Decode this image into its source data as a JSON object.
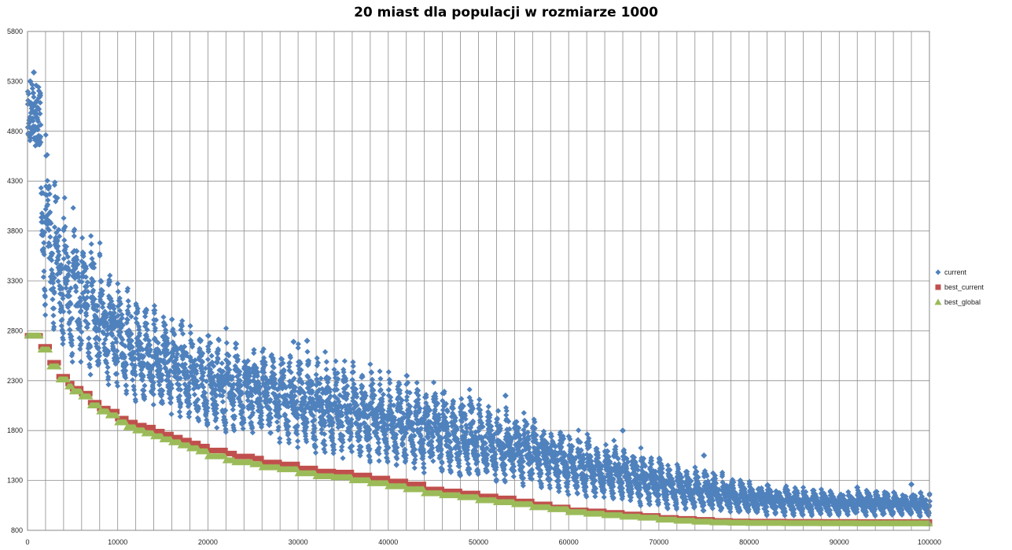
{
  "chart_data": {
    "type": "scatter",
    "title": "20 miast dla populacji w  rozmiarze 1000",
    "xlabel": "",
    "ylabel": "",
    "xlim": [
      0,
      100000
    ],
    "ylim": [
      800,
      5800
    ],
    "xticks": [
      0,
      10000,
      20000,
      30000,
      40000,
      50000,
      60000,
      70000,
      80000,
      90000,
      100000
    ],
    "yticks": [
      800,
      1300,
      1800,
      2300,
      2800,
      3300,
      3800,
      4300,
      4800,
      5300,
      5800
    ],
    "grid": true,
    "legend": "right",
    "x_gridlines_every": 2000,
    "series": [
      {
        "name": "current",
        "color": "#4F81BD",
        "marker": "diamond",
        "upper_envelope": [
          [
            0,
            5250
          ],
          [
            2000,
            4880
          ],
          [
            3000,
            4550
          ],
          [
            4000,
            4300
          ],
          [
            5000,
            4100
          ],
          [
            6000,
            4020
          ],
          [
            8000,
            3700
          ],
          [
            10000,
            3450
          ],
          [
            12000,
            3250
          ],
          [
            14000,
            3120
          ],
          [
            16000,
            3050
          ],
          [
            18000,
            2980
          ],
          [
            20000,
            2900
          ],
          [
            24000,
            2800
          ],
          [
            28000,
            2750
          ],
          [
            32000,
            2660
          ],
          [
            36000,
            2580
          ],
          [
            40000,
            2450
          ],
          [
            44000,
            2380
          ],
          [
            48000,
            2280
          ],
          [
            52000,
            2120
          ],
          [
            56000,
            2020
          ],
          [
            60000,
            1880
          ],
          [
            64000,
            1750
          ],
          [
            68000,
            1650
          ],
          [
            72000,
            1480
          ],
          [
            76000,
            1420
          ],
          [
            80000,
            1320
          ],
          [
            84000,
            1270
          ],
          [
            88000,
            1230
          ],
          [
            92000,
            1220
          ],
          [
            96000,
            1220
          ],
          [
            100000,
            1200
          ]
        ],
        "lower_envelope": [
          [
            0,
            4600
          ],
          [
            2000,
            2850
          ],
          [
            4000,
            2500
          ],
          [
            6000,
            2350
          ],
          [
            8000,
            2250
          ],
          [
            10000,
            2150
          ],
          [
            12000,
            2050
          ],
          [
            16000,
            1900
          ],
          [
            20000,
            1780
          ],
          [
            24000,
            1700
          ],
          [
            28000,
            1650
          ],
          [
            32000,
            1520
          ],
          [
            36000,
            1460
          ],
          [
            40000,
            1400
          ],
          [
            44000,
            1330
          ],
          [
            48000,
            1290
          ],
          [
            52000,
            1240
          ],
          [
            56000,
            1200
          ],
          [
            60000,
            1120
          ],
          [
            64000,
            1080
          ],
          [
            68000,
            1030
          ],
          [
            72000,
            990
          ],
          [
            76000,
            960
          ],
          [
            80000,
            940
          ],
          [
            84000,
            935
          ],
          [
            88000,
            935
          ],
          [
            92000,
            935
          ],
          [
            96000,
            930
          ],
          [
            100000,
            930
          ]
        ],
        "outliers": [
          [
            700,
            5390
          ],
          [
            300,
            5300
          ],
          [
            53000,
            2150
          ],
          [
            31000,
            2700
          ],
          [
            29500,
            2690
          ],
          [
            66000,
            1800
          ],
          [
            75000,
            1550
          ],
          [
            92000,
            1230
          ],
          [
            98000,
            1260
          ]
        ]
      },
      {
        "name": "best_current",
        "color": "#C0504D",
        "marker": "square",
        "values": [
          [
            0,
            2750
          ],
          [
            1000,
            2750
          ],
          [
            1500,
            2640
          ],
          [
            2000,
            2640
          ],
          [
            2500,
            2480
          ],
          [
            3000,
            2480
          ],
          [
            3500,
            2340
          ],
          [
            4000,
            2340
          ],
          [
            4500,
            2270
          ],
          [
            5000,
            2220
          ],
          [
            6000,
            2170
          ],
          [
            7000,
            2080
          ],
          [
            8000,
            2020
          ],
          [
            9000,
            1990
          ],
          [
            10000,
            1920
          ],
          [
            11000,
            1880
          ],
          [
            12000,
            1850
          ],
          [
            13000,
            1830
          ],
          [
            14000,
            1790
          ],
          [
            15000,
            1760
          ],
          [
            16000,
            1730
          ],
          [
            17000,
            1700
          ],
          [
            18000,
            1670
          ],
          [
            19000,
            1640
          ],
          [
            20000,
            1600
          ],
          [
            22000,
            1570
          ],
          [
            23000,
            1540
          ],
          [
            25000,
            1520
          ],
          [
            26000,
            1480
          ],
          [
            28000,
            1460
          ],
          [
            30000,
            1420
          ],
          [
            32000,
            1390
          ],
          [
            34000,
            1380
          ],
          [
            36000,
            1350
          ],
          [
            38000,
            1320
          ],
          [
            40000,
            1290
          ],
          [
            42000,
            1260
          ],
          [
            44000,
            1210
          ],
          [
            46000,
            1190
          ],
          [
            48000,
            1170
          ],
          [
            50000,
            1140
          ],
          [
            52000,
            1120
          ],
          [
            54000,
            1090
          ],
          [
            56000,
            1060
          ],
          [
            58000,
            1030
          ],
          [
            60000,
            1000
          ],
          [
            62000,
            990
          ],
          [
            64000,
            975
          ],
          [
            66000,
            960
          ],
          [
            68000,
            945
          ],
          [
            70000,
            925
          ],
          [
            72000,
            915
          ],
          [
            74000,
            905
          ],
          [
            76000,
            895
          ],
          [
            78000,
            890
          ],
          [
            80000,
            888
          ],
          [
            84000,
            886
          ],
          [
            88000,
            885
          ],
          [
            92000,
            884
          ],
          [
            96000,
            884
          ],
          [
            100000,
            883
          ]
        ]
      },
      {
        "name": "best_global",
        "color": "#9BBB59",
        "marker": "triangle",
        "values": [
          [
            0,
            2750
          ],
          [
            1000,
            2750
          ],
          [
            1500,
            2610
          ],
          [
            2000,
            2610
          ],
          [
            2500,
            2440
          ],
          [
            3000,
            2440
          ],
          [
            3500,
            2310
          ],
          [
            4000,
            2310
          ],
          [
            4500,
            2240
          ],
          [
            5000,
            2190
          ],
          [
            6000,
            2140
          ],
          [
            7000,
            2050
          ],
          [
            8000,
            1990
          ],
          [
            9000,
            1950
          ],
          [
            10000,
            1880
          ],
          [
            11000,
            1830
          ],
          [
            12000,
            1800
          ],
          [
            13000,
            1770
          ],
          [
            14000,
            1740
          ],
          [
            15000,
            1710
          ],
          [
            16000,
            1680
          ],
          [
            17000,
            1650
          ],
          [
            18000,
            1620
          ],
          [
            19000,
            1590
          ],
          [
            20000,
            1540
          ],
          [
            22000,
            1500
          ],
          [
            23000,
            1480
          ],
          [
            25000,
            1460
          ],
          [
            26000,
            1430
          ],
          [
            28000,
            1410
          ],
          [
            30000,
            1370
          ],
          [
            32000,
            1340
          ],
          [
            34000,
            1330
          ],
          [
            36000,
            1300
          ],
          [
            38000,
            1270
          ],
          [
            40000,
            1240
          ],
          [
            42000,
            1210
          ],
          [
            44000,
            1170
          ],
          [
            46000,
            1150
          ],
          [
            48000,
            1130
          ],
          [
            50000,
            1100
          ],
          [
            52000,
            1080
          ],
          [
            54000,
            1060
          ],
          [
            56000,
            1030
          ],
          [
            58000,
            1010
          ],
          [
            60000,
            980
          ],
          [
            62000,
            965
          ],
          [
            64000,
            950
          ],
          [
            66000,
            935
          ],
          [
            68000,
            925
          ],
          [
            70000,
            905
          ],
          [
            72000,
            895
          ],
          [
            74000,
            885
          ],
          [
            76000,
            878
          ],
          [
            78000,
            875
          ],
          [
            80000,
            872
          ],
          [
            84000,
            870
          ],
          [
            88000,
            869
          ],
          [
            92000,
            868
          ],
          [
            96000,
            868
          ],
          [
            100000,
            867
          ]
        ]
      }
    ]
  }
}
